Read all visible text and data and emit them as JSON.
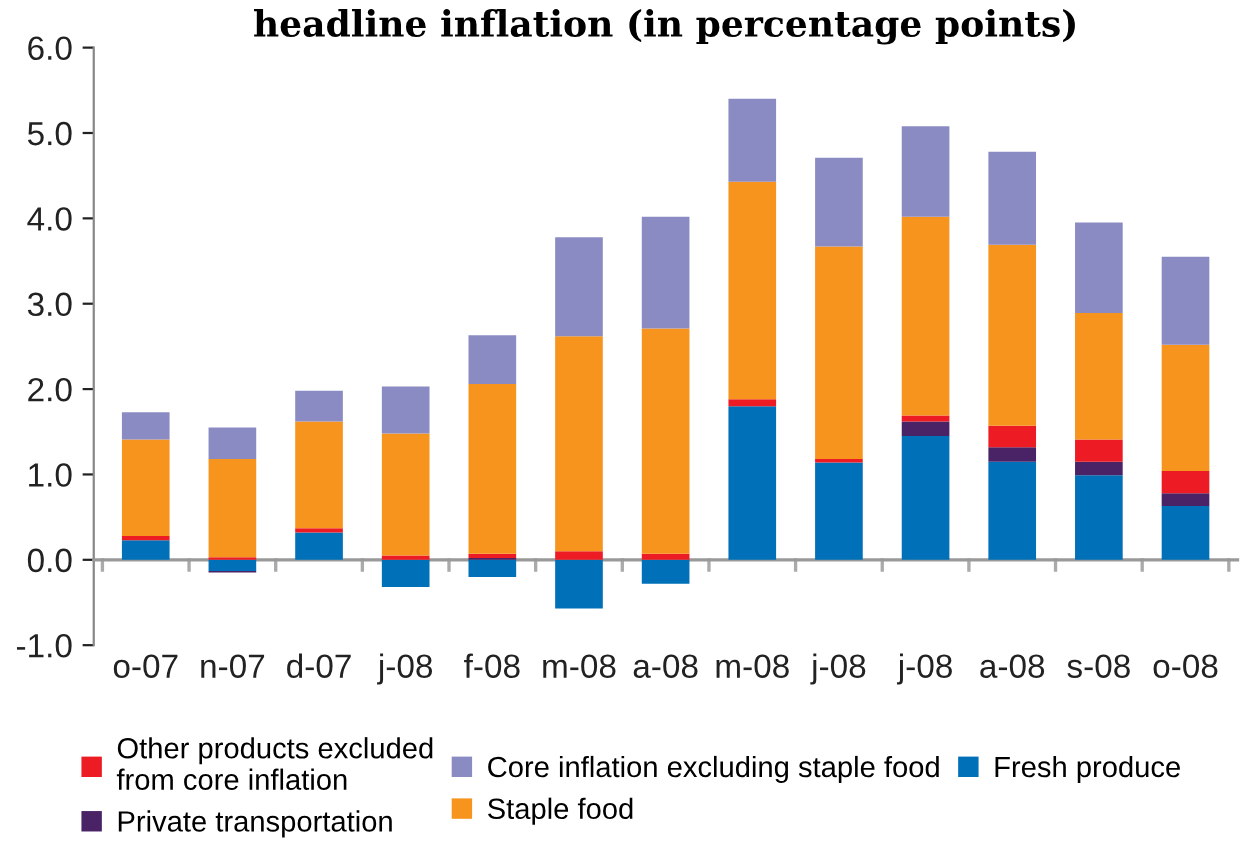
{
  "chart_data": {
    "type": "bar",
    "stacked": true,
    "title": "headline inflation (in percentage points)",
    "categories": [
      "o-07",
      "n-07",
      "d-07",
      "j-08",
      "f-08",
      "m-08",
      "a-08",
      "m-08",
      "j-08",
      "j-08",
      "a-08",
      "s-08",
      "o-08"
    ],
    "series": [
      {
        "name": "Fresh produce",
        "color": "#0070b8",
        "values": [
          0.23,
          -0.13,
          0.32,
          -0.32,
          -0.2,
          -0.57,
          -0.28,
          1.8,
          1.14,
          1.45,
          1.15,
          0.99,
          0.63
        ]
      },
      {
        "name": "Private transportation",
        "color": "#4a2366",
        "values": [
          0,
          -0.02,
          0,
          0,
          0.02,
          0,
          0,
          0,
          0,
          0.17,
          0.17,
          0.16,
          0.15
        ]
      },
      {
        "name": "Other products excluded\nfrom core inflation",
        "color": "#ed1c24",
        "values": [
          0.05,
          0.03,
          0.05,
          0.05,
          0.05,
          0.1,
          0.07,
          0.08,
          0.04,
          0.07,
          0.25,
          0.26,
          0.26
        ]
      },
      {
        "name": "Staple food",
        "color": "#f7941d",
        "values": [
          1.13,
          1.15,
          1.25,
          1.43,
          1.99,
          2.52,
          2.64,
          2.55,
          2.49,
          2.33,
          2.12,
          1.48,
          1.48
        ]
      },
      {
        "name": "Core inflation excluding staple food",
        "color": "#8b8bc3",
        "values": [
          0.32,
          0.37,
          0.36,
          0.55,
          0.57,
          1.16,
          1.31,
          0.97,
          1.04,
          1.06,
          1.09,
          1.06,
          1.03
        ]
      }
    ],
    "ylim": [
      -1.0,
      6.0
    ],
    "yticks": [
      {
        "value": -1.0,
        "label": "-1.0"
      },
      {
        "value": 0.0,
        "label": "0.0"
      },
      {
        "value": 1.0,
        "label": "1.0"
      },
      {
        "value": 2.0,
        "label": "2.0"
      },
      {
        "value": 3.0,
        "label": "3.0"
      },
      {
        "value": 4.0,
        "label": "4.0"
      },
      {
        "value": 5.0,
        "label": "5.0"
      },
      {
        "value": 6.0,
        "label": "6.0"
      }
    ],
    "legend": "bottom"
  }
}
